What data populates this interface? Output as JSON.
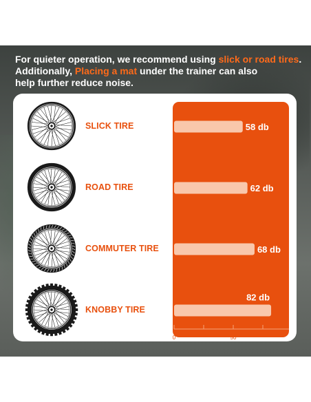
{
  "header": {
    "line1_pre": "For quieter operation, we recommend using ",
    "line1_hl": "slick or road tires",
    "line1_post": ".",
    "line2_pre": "Additionally, ",
    "line2_hl": "Placing a mat",
    "line2_post": " under the trainer can also",
    "line3": "help further reduce noise."
  },
  "tires": [
    {
      "label": "SLICK TIRE",
      "icon": "slick-wheel-icon"
    },
    {
      "label": "ROAD TIRE",
      "icon": "road-wheel-icon"
    },
    {
      "label": "COMMUTER TIRE",
      "icon": "commuter-wheel-icon"
    },
    {
      "label": "KNOBBY TIRE",
      "icon": "knobby-wheel-icon"
    }
  ],
  "chart_data": {
    "type": "bar",
    "orientation": "horizontal",
    "categories": [
      "SLICK TIRE",
      "ROAD TIRE",
      "COMMUTER TIRE",
      "KNOBBY TIRE"
    ],
    "values": [
      58,
      62,
      68,
      82
    ],
    "data_labels": [
      "58 db",
      "62 db",
      "68 db",
      "82 db"
    ],
    "unit": "db",
    "xlim": [
      0,
      100
    ],
    "x_ticks": [
      0,
      50
    ],
    "tick_labels": [
      "0",
      "50"
    ]
  },
  "colors": {
    "accent": "#e8500e",
    "highlight": "#ff6a1a",
    "bar": "#f9c7ab",
    "card": "#ffffff",
    "tire": "#1a1a1a"
  }
}
